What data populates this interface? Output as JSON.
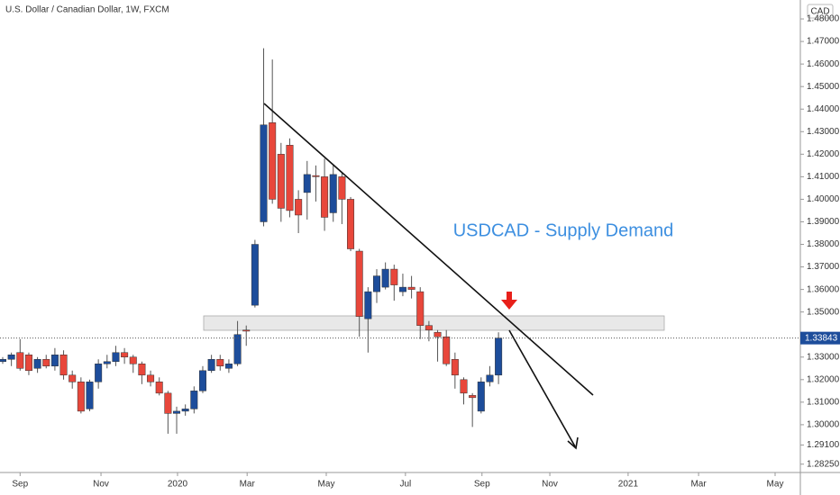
{
  "chart_data": {
    "type": "candlestick",
    "title": "U.S. Dollar / Canadian Dollar, 1W, FXCM",
    "annotation": "USDCAD - Supply Demand",
    "currency": "CAD",
    "last_price": 1.33843,
    "up_color": "#1d4d9b",
    "down_color": "#e8473b",
    "open": [
      1.328,
      1.329,
      1.332,
      1.331,
      1.325,
      1.329,
      1.326,
      1.331,
      1.322,
      1.319,
      1.307,
      1.319,
      1.327,
      1.328,
      1.332,
      1.33,
      1.327,
      1.322,
      1.319,
      1.314,
      1.305,
      1.306,
      1.307,
      1.315,
      1.324,
      1.329,
      1.325,
      1.327,
      1.342,
      1.353,
      1.39,
      1.434,
      1.42,
      1.424,
      1.4,
      1.403,
      1.4105,
      1.41,
      1.394,
      1.41,
      1.4,
      1.377,
      1.347,
      1.359,
      1.361,
      1.369,
      1.359,
      1.361,
      1.359,
      1.344,
      1.341,
      1.339,
      1.329,
      1.32,
      1.313,
      1.306,
      1.319,
      1.322
    ],
    "high": [
      1.33,
      1.332,
      1.338,
      1.332,
      1.33,
      1.331,
      1.334,
      1.333,
      1.324,
      1.321,
      1.32,
      1.329,
      1.331,
      1.335,
      1.334,
      1.331,
      1.328,
      1.324,
      1.321,
      1.315,
      1.308,
      1.309,
      1.317,
      1.326,
      1.331,
      1.331,
      1.329,
      1.346,
      1.344,
      1.382,
      1.467,
      1.462,
      1.425,
      1.427,
      1.404,
      1.417,
      1.415,
      1.418,
      1.415,
      1.412,
      1.401,
      1.378,
      1.361,
      1.369,
      1.372,
      1.371,
      1.367,
      1.366,
      1.361,
      1.346,
      1.342,
      1.342,
      1.332,
      1.321,
      1.314,
      1.321,
      1.326,
      1.341
    ],
    "low": [
      1.327,
      1.326,
      1.324,
      1.322,
      1.323,
      1.325,
      1.324,
      1.32,
      1.316,
      1.305,
      1.306,
      1.316,
      1.325,
      1.326,
      1.327,
      1.323,
      1.318,
      1.317,
      1.313,
      1.296,
      1.296,
      1.304,
      1.305,
      1.314,
      1.323,
      1.324,
      1.323,
      1.326,
      1.335,
      1.352,
      1.388,
      1.398,
      1.39,
      1.392,
      1.385,
      1.391,
      1.399,
      1.386,
      1.39,
      1.389,
      1.377,
      1.339,
      1.332,
      1.354,
      1.36,
      1.355,
      1.357,
      1.356,
      1.338,
      1.337,
      1.328,
      1.326,
      1.316,
      1.309,
      1.299,
      1.305,
      1.317,
      1.318
    ],
    "close": [
      1.329,
      1.331,
      1.325,
      1.324,
      1.329,
      1.326,
      1.331,
      1.322,
      1.319,
      1.306,
      1.319,
      1.327,
      1.328,
      1.332,
      1.33,
      1.327,
      1.322,
      1.319,
      1.314,
      1.305,
      1.306,
      1.307,
      1.315,
      1.324,
      1.329,
      1.326,
      1.327,
      1.34,
      1.3415,
      1.38,
      1.433,
      1.4,
      1.396,
      1.395,
      1.393,
      1.411,
      1.41,
      1.392,
      1.411,
      1.4,
      1.378,
      1.348,
      1.359,
      1.366,
      1.369,
      1.362,
      1.361,
      1.36,
      1.344,
      1.342,
      1.339,
      1.327,
      1.322,
      1.314,
      1.312,
      1.319,
      1.322,
      1.33843
    ],
    "xlim": [
      -0.31,
      91.7
    ],
    "xticks": [
      {
        "value": 2,
        "label": "Sep"
      },
      {
        "value": 11.3,
        "label": "Nov"
      },
      {
        "value": 20.1,
        "label": "2020"
      },
      {
        "value": 28.1,
        "label": "Mar"
      },
      {
        "value": 37.2,
        "label": "May"
      },
      {
        "value": 46.3,
        "label": "Jul"
      },
      {
        "value": 55.1,
        "label": "Sep"
      },
      {
        "value": 62.9,
        "label": "Nov"
      },
      {
        "value": 71.9,
        "label": "2021"
      },
      {
        "value": 80,
        "label": "Mar"
      },
      {
        "value": 88.8,
        "label": "May"
      }
    ],
    "ylim": [
      1.2788,
      1.4884
    ],
    "yticks": [
      {
        "value": 1.2825,
        "label": "1.28250"
      },
      {
        "value": 1.291,
        "label": "1.29100"
      },
      {
        "value": 1.3,
        "label": "1.30000"
      },
      {
        "value": 1.31,
        "label": "1.31000"
      },
      {
        "value": 1.32,
        "label": "1.32000"
      },
      {
        "value": 1.33,
        "label": "1.33000"
      },
      {
        "value": 1.35,
        "label": "1.35000"
      },
      {
        "value": 1.36,
        "label": "1.36000"
      },
      {
        "value": 1.37,
        "label": "1.37000"
      },
      {
        "value": 1.38,
        "label": "1.38000"
      },
      {
        "value": 1.39,
        "label": "1.39000"
      },
      {
        "value": 1.4,
        "label": "1.40000"
      },
      {
        "value": 1.41,
        "label": "1.41000"
      },
      {
        "value": 1.42,
        "label": "1.42000"
      },
      {
        "value": 1.43,
        "label": "1.43000"
      },
      {
        "value": 1.44,
        "label": "1.44000"
      },
      {
        "value": 1.45,
        "label": "1.45000"
      },
      {
        "value": 1.46,
        "label": "1.46000"
      },
      {
        "value": 1.47,
        "label": "1.47000"
      },
      {
        "value": 1.48,
        "label": "1.48000"
      }
    ]
  }
}
